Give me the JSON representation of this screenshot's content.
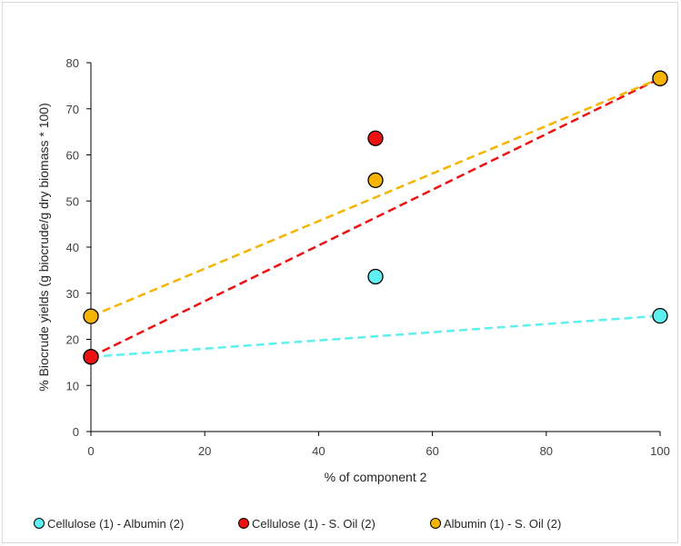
{
  "chart_data": {
    "type": "scatter",
    "xlabel": "% of component 2",
    "ylabel": "% Biocrude yields (g biocrude/g dry biomass * 100)",
    "xlim": [
      0,
      100
    ],
    "ylim": [
      0,
      80
    ],
    "x_ticks": [
      0,
      20,
      40,
      60,
      80,
      100
    ],
    "y_ticks": [
      0,
      10,
      20,
      30,
      40,
      50,
      60,
      70,
      80
    ],
    "grid": false,
    "legend_position": "bottom",
    "series": [
      {
        "name": "Cellulose (1) - Albumin (2)",
        "color": "#5ef0f0",
        "x": [
          0,
          50,
          100
        ],
        "y": [
          16.2,
          33.6,
          25.1
        ],
        "trendline": {
          "style": "dashed",
          "from": [
            0,
            16.2
          ],
          "to": [
            100,
            25.1
          ]
        }
      },
      {
        "name": "Cellulose (1) - S. Oil (2)",
        "color": "#ee1111",
        "x": [
          0,
          50,
          100
        ],
        "y": [
          16.2,
          63.6,
          76.6
        ],
        "trendline": {
          "style": "dashed",
          "from": [
            0,
            16.2
          ],
          "to": [
            100,
            76.6
          ]
        }
      },
      {
        "name": "Albumin (1) - S. Oil (2)",
        "color": "#f5b400",
        "x": [
          0,
          50,
          100
        ],
        "y": [
          25.0,
          54.5,
          76.6
        ],
        "trendline": {
          "style": "dashed",
          "from": [
            0,
            25.0
          ],
          "to": [
            100,
            76.6
          ]
        }
      }
    ]
  }
}
